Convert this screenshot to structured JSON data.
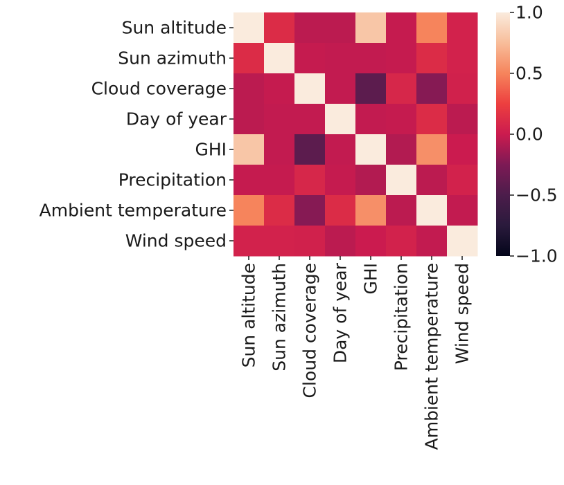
{
  "chart_data": {
    "type": "heatmap",
    "rows": [
      "Sun altitude",
      "Sun azimuth",
      "Cloud coverage",
      "Day of year",
      "GHI",
      "Precipitation",
      "Ambient temperature",
      "Wind speed"
    ],
    "columns": [
      "Sun altitude",
      "Sun azimuth",
      "Cloud coverage",
      "Day of year",
      "GHI",
      "Precipitation",
      "Ambient temperature",
      "Wind speed"
    ],
    "values": [
      [
        1.0,
        0.12,
        -0.05,
        -0.05,
        0.8,
        -0.02,
        0.5,
        0.05
      ],
      [
        0.12,
        1.0,
        -0.02,
        -0.03,
        -0.03,
        -0.02,
        0.12,
        0.05
      ],
      [
        -0.05,
        -0.02,
        1.0,
        -0.03,
        -0.42,
        0.08,
        -0.22,
        0.04
      ],
      [
        -0.05,
        -0.03,
        -0.03,
        1.0,
        -0.03,
        -0.02,
        0.12,
        -0.05
      ],
      [
        0.8,
        -0.03,
        -0.42,
        -0.03,
        1.0,
        -0.08,
        0.55,
        0.0
      ],
      [
        -0.02,
        -0.02,
        0.08,
        -0.02,
        -0.08,
        1.0,
        -0.05,
        0.05
      ],
      [
        0.5,
        0.12,
        -0.22,
        0.12,
        0.55,
        -0.05,
        1.0,
        -0.03
      ],
      [
        0.05,
        0.05,
        0.04,
        -0.05,
        0.0,
        0.05,
        -0.03,
        1.0
      ]
    ],
    "vmin": -1.0,
    "vmax": 1.0,
    "colormap": "rocket",
    "colorbar": {
      "ticks": [
        1.0,
        0.5,
        0.0,
        -0.5,
        -1.0
      ],
      "tick_labels": [
        "1.0",
        "0.5",
        "0.0",
        "−0.5",
        "−1.0"
      ]
    },
    "title": "",
    "xlabel": "",
    "ylabel": ""
  }
}
